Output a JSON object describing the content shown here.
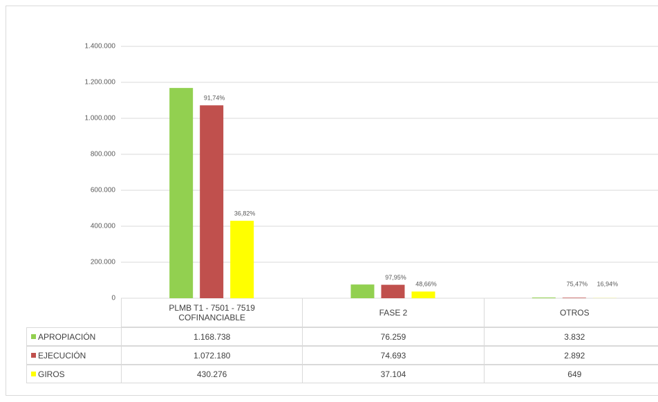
{
  "chart_data": {
    "type": "bar",
    "categories": [
      "PLMB T1 - 7501 - 7519 COFINANCIABLE",
      "FASE 2",
      "OTROS"
    ],
    "series": [
      {
        "name": "APROPIACIÓN",
        "color": "#92d050",
        "values": [
          1168738,
          76259,
          3832
        ],
        "value_labels": [
          "1.168.738",
          "76.259",
          "3.832"
        ]
      },
      {
        "name": "EJECUCIÓN",
        "color": "#c0504d",
        "values": [
          1072180,
          74693,
          2892
        ],
        "value_labels": [
          "1.072.180",
          "74.693",
          "2.892"
        ],
        "percent_labels": [
          "91,74%",
          "97,95%",
          "75,47%"
        ]
      },
      {
        "name": "GIROS",
        "color": "#ffff00",
        "values": [
          430276,
          37104,
          649
        ],
        "value_labels": [
          "430.276",
          "37.104",
          "649"
        ],
        "percent_labels": [
          "36,82%",
          "48,66%",
          "16,94%"
        ]
      }
    ],
    "ylim": [
      0,
      1400000
    ],
    "yticks": [
      0,
      {
        "value": 200000,
        "label": "200.000"
      },
      {
        "value": 400000,
        "label": "400.000"
      },
      {
        "value": 600000,
        "label": "600.000"
      },
      {
        "value": 800000,
        "label": "800.000"
      },
      {
        "value": 1000000,
        "label": "1.000.000"
      },
      {
        "value": 1200000,
        "label": "1.200.000"
      },
      {
        "value": 1400000,
        "label": "1.400.000"
      }
    ],
    "grid": true
  }
}
